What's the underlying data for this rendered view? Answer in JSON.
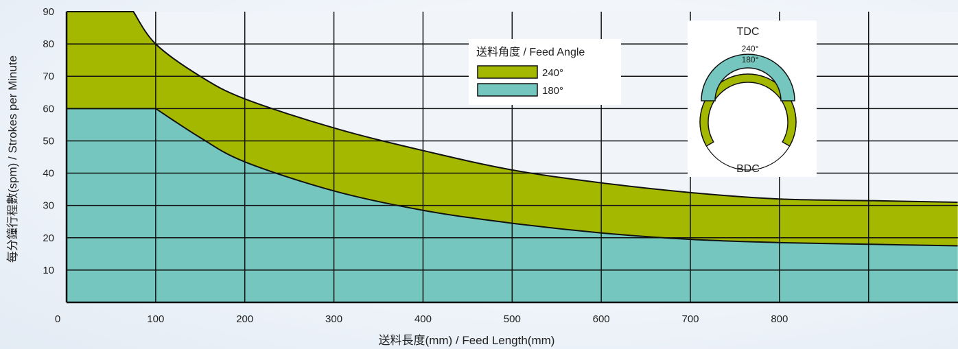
{
  "chart_data": {
    "type": "area",
    "xlabel": "送料長度(mm) / Feed Length(mm)",
    "ylabel": "每分鐘行程數(spm) / Strokes per Minute",
    "xlim": [
      0,
      1000
    ],
    "ylim": [
      0,
      90
    ],
    "x_ticks": [
      "0",
      "100",
      "200",
      "300",
      "400",
      "500",
      "600",
      "700",
      "800"
    ],
    "y_ticks": [
      "10",
      "20",
      "30",
      "40",
      "50",
      "60",
      "70",
      "80",
      "90"
    ],
    "grid": true,
    "legend": {
      "title": "送料角度 / Feed Angle",
      "placement": "top-center"
    },
    "series": [
      {
        "name": "240°",
        "color": "#a5b800",
        "x": [
          0,
          75,
          100,
          150,
          200,
          300,
          400,
          500,
          600,
          700,
          800,
          900,
          1000
        ],
        "y": [
          90,
          90,
          80,
          70,
          63,
          54,
          47,
          41,
          37,
          34,
          32,
          31.5,
          31
        ]
      },
      {
        "name": "180°",
        "color": "#74c6bf",
        "x": [
          0,
          100,
          150,
          200,
          300,
          400,
          500,
          600,
          700,
          800,
          900,
          1000
        ],
        "y": [
          60,
          60,
          51,
          43.5,
          34.5,
          28.5,
          24.5,
          21.5,
          19.5,
          18.5,
          18,
          17.5
        ]
      }
    ],
    "inset": {
      "top_label": "TDC",
      "bottom_label": "BDC",
      "outer_arc_label": "240°",
      "inner_arc_label": "180°"
    }
  }
}
